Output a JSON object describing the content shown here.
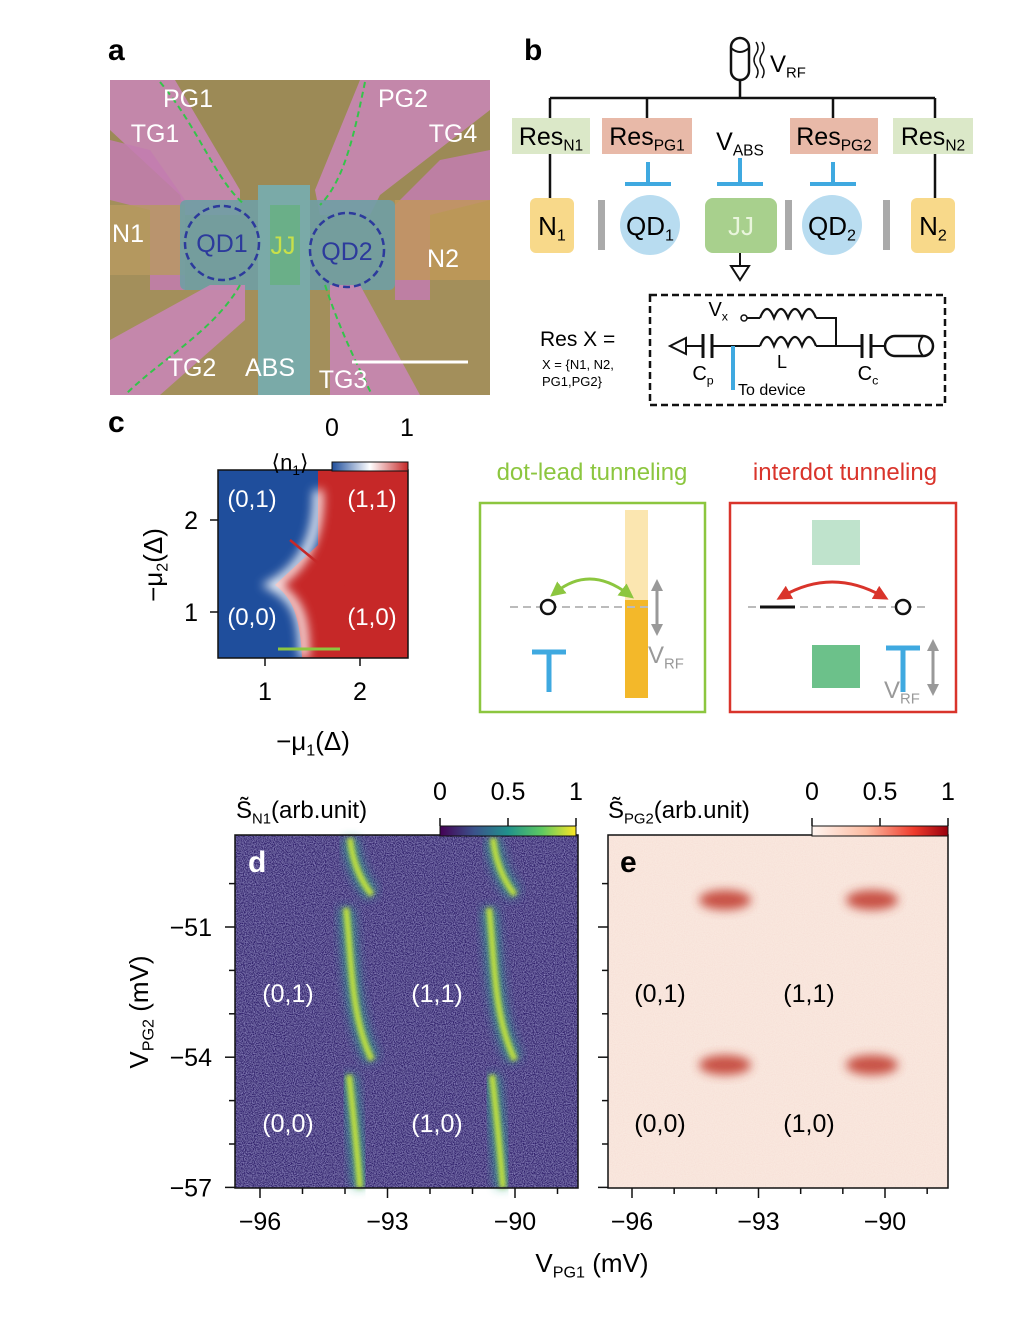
{
  "panel_a": {
    "label": "a",
    "texts": [
      "PG1",
      "PG2",
      "TG1",
      "TG4",
      "N1",
      "N2",
      "QD1",
      "JJ",
      "QD2",
      "TG2",
      "ABS",
      "TG3"
    ]
  },
  "panel_b": {
    "label": "b",
    "source": {
      "main": "V",
      "sub": "RF"
    },
    "resonators": [
      {
        "main": "Res",
        "sub": "N1"
      },
      {
        "main": "Res",
        "sub": "PG1"
      },
      {
        "main": "Res",
        "sub": "PG2"
      },
      {
        "main": "Res",
        "sub": "N2"
      }
    ],
    "gate": {
      "main": "V",
      "sub": "ABS"
    },
    "leads": [
      {
        "main": "N",
        "sub": "1"
      },
      {
        "main": "N",
        "sub": "2"
      }
    ],
    "dots": [
      {
        "main": "QD",
        "sub": "1"
      },
      {
        "main": "QD",
        "sub": "2"
      }
    ],
    "junction": "JJ",
    "definition": "Res X =",
    "members": [
      "X = {N1, N2,",
      "PG1,PG2}"
    ],
    "circuit": {
      "vx": {
        "main": "V",
        "sub": "x"
      },
      "inductor": "L",
      "cp": {
        "main": "C",
        "sub": "p"
      },
      "cc": {
        "main": "C",
        "sub": "c"
      },
      "device": "To device"
    }
  },
  "panel_c": {
    "label": "c",
    "colorbar": {
      "label": {
        "main": "⟨n",
        "sub": "1",
        "end": "⟩"
      },
      "ticks": [
        "0",
        "1"
      ]
    },
    "states": [
      "(0,1)",
      "(1,1)",
      "(0,0)",
      "(1,0)"
    ],
    "yticks": [
      "2",
      "1"
    ],
    "xticks": [
      "1",
      "2"
    ],
    "ylabel": {
      "main": "−μ",
      "sub": "2",
      "end": "(Δ)"
    },
    "xlabel": {
      "main": "−μ",
      "sub": "1",
      "end": "(Δ)"
    }
  },
  "schematic": {
    "dot_lead": {
      "title": "dot-lead tunneling",
      "probe": {
        "main": "V",
        "sub": "RF"
      }
    },
    "interdot": {
      "title": "interdot tunneling",
      "probe": {
        "main": "V",
        "sub": "RF"
      }
    }
  },
  "panel_d": {
    "label": "d",
    "colorbar": {
      "label": {
        "main": "S̃",
        "sub": "N1",
        "end": "(arb.unit)"
      },
      "ticks": [
        "0",
        "0.5",
        "1"
      ]
    },
    "states": [
      "(0,1)",
      "(1,1)",
      "(0,0)",
      "(1,0)"
    ],
    "yticks": [
      "−51",
      "−54",
      "−57"
    ],
    "xticks": [
      "−96",
      "−93",
      "−90"
    ]
  },
  "panel_e": {
    "label": "e",
    "colorbar": {
      "label": {
        "main": "S̃",
        "sub": "PG2",
        "end": "(arb.unit)"
      },
      "ticks": [
        "0",
        "0.5",
        "1"
      ]
    },
    "states": [
      "(0,1)",
      "(1,1)",
      "(0,0)",
      "(1,0)"
    ],
    "xticks": [
      "−96",
      "−93",
      "−90"
    ]
  },
  "axes": {
    "ylabel": {
      "main": "V",
      "sub": "PG2",
      "end": " (mV)"
    },
    "xlabel": {
      "main": "V",
      "sub": "PG1",
      "end": " (mV)"
    }
  }
}
